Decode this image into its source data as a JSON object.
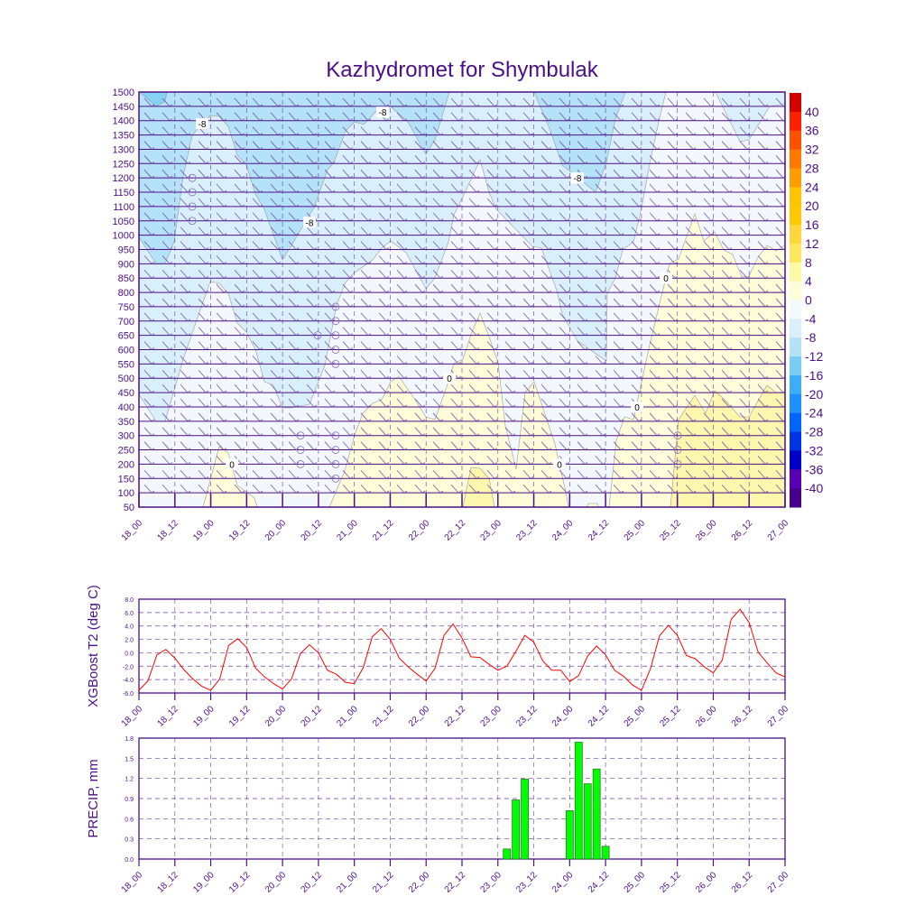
{
  "title": "Kazhydromet for Shymbulak",
  "x_ticks": [
    "18_00",
    "18_12",
    "19_00",
    "19_12",
    "20_00",
    "20_12",
    "21_00",
    "21_12",
    "22_00",
    "22_12",
    "23_00",
    "23_12",
    "24_00",
    "24_12",
    "25_00",
    "25_12",
    "26_00",
    "26_12",
    "27_00"
  ],
  "chart_data": [
    {
      "type": "heatmap",
      "title": "Kazhydromet for Shymbulak",
      "ylim": [
        50,
        1500
      ],
      "y_ticks": [
        "1500",
        "1450",
        "1400",
        "1350",
        "1300",
        "1250",
        "1200",
        "1150",
        "1100",
        "1050",
        "1000",
        "950",
        "900",
        "850",
        "800",
        "750",
        "700",
        "650",
        "600",
        "550",
        "500",
        "450",
        "400",
        "350",
        "300",
        "250",
        "200",
        "150",
        "100",
        "50"
      ],
      "colorbar": {
        "labels": [
          "40",
          "36",
          "32",
          "28",
          "24",
          "20",
          "16",
          "12",
          "8",
          "4",
          "0",
          "-4",
          "-8",
          "-12",
          "-16",
          "-20",
          "-24",
          "-28",
          "-32",
          "-36",
          "-40"
        ],
        "colors": [
          "#d40000",
          "#ff2000",
          "#ff5000",
          "#ff7800",
          "#ff9c00",
          "#ffc400",
          "#ffc800",
          "#ffd63c",
          "#ffe65c",
          "#fff8a4",
          "#fffcd8",
          "#f4f9fe",
          "#d9f0fc",
          "#b4e2f8",
          "#78cdf6",
          "#3caef8",
          "#1e90ff",
          "#0064ff",
          "#0032e6",
          "#0000c8",
          "#5a00b4",
          "#46008c"
        ]
      },
      "contour_labels": [
        "-8",
        "-8",
        "-8",
        "-8",
        "0",
        "0",
        "0",
        "0",
        "0"
      ]
    },
    {
      "type": "line",
      "ylabel": "XGBoost T2 (deg C)",
      "ylim": [
        -6,
        8
      ],
      "y_ticks": [
        "8.0",
        "6.0",
        "4.0",
        "2.0",
        "0.0",
        "-2.0",
        "-4.0",
        "-6.0"
      ],
      "step_hours": 3,
      "color": "#ff0000",
      "values": [
        -5.6,
        -4.2,
        -0.3,
        0.5,
        -0.8,
        -2.5,
        -3.9,
        -5.0,
        -5.6,
        -3.9,
        1.1,
        2.1,
        0.8,
        -2.3,
        -3.6,
        -4.6,
        -5.4,
        -3.9,
        -0.1,
        1.2,
        0.0,
        -2.6,
        -3.2,
        -4.4,
        -4.6,
        -2.2,
        2.4,
        3.6,
        2.0,
        -0.8,
        -2.1,
        -3.2,
        -4.2,
        -2.3,
        2.6,
        4.3,
        2.2,
        -0.6,
        -0.7,
        -1.7,
        -2.6,
        -2.0,
        0.2,
        2.6,
        1.6,
        -1.2,
        -2.6,
        -2.6,
        -4.3,
        -3.4,
        -0.5,
        1.0,
        -0.3,
        -2.6,
        -3.5,
        -4.8,
        -5.6,
        -2.4,
        2.5,
        4.1,
        2.6,
        -0.4,
        -0.9,
        -2.1,
        -3.0,
        -1.1,
        5.0,
        6.5,
        4.5,
        0.1,
        -1.5,
        -3.0,
        -3.6
      ]
    },
    {
      "type": "bar",
      "ylabel": "PRECIP, mm",
      "ylim": [
        0,
        1.8
      ],
      "y_ticks": [
        "1.8",
        "1.5",
        "1.2",
        "0.9",
        "0.6",
        "0.3",
        "0.0"
      ],
      "color": "#00ff00",
      "bars": [
        {
          "x": "23_03",
          "value": 0.15
        },
        {
          "x": "23_06",
          "value": 0.88
        },
        {
          "x": "23_09",
          "value": 1.19
        },
        {
          "x": "24_00",
          "value": 0.72
        },
        {
          "x": "24_03",
          "value": 1.74
        },
        {
          "x": "24_06",
          "value": 1.12
        },
        {
          "x": "24_09",
          "value": 1.34
        },
        {
          "x": "24_12",
          "value": 0.19
        }
      ]
    }
  ]
}
